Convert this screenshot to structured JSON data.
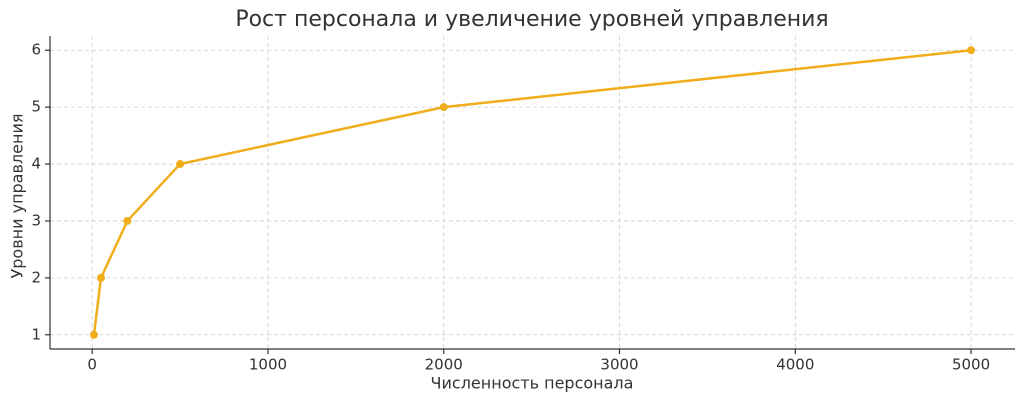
{
  "chart_data": {
    "type": "line",
    "title": "Рост персонала и увеличение уровней управления",
    "x_label": "Численность персонала",
    "y_label": "Уровни управления",
    "x": [
      10,
      50,
      200,
      500,
      2000,
      5000
    ],
    "series": [
      {
        "name": "Уровни управления",
        "color": "#f0ad1c",
        "values": [
          1,
          2,
          3,
          4,
          5,
          6
        ]
      }
    ],
    "xlim": [
      -240,
      5250
    ],
    "xticks": [
      0,
      1000,
      2000,
      3000,
      4000,
      5000
    ],
    "ylim": [
      0.75,
      6.25
    ],
    "yticks": [
      1,
      2,
      3,
      4,
      5,
      6
    ],
    "grid": true
  }
}
